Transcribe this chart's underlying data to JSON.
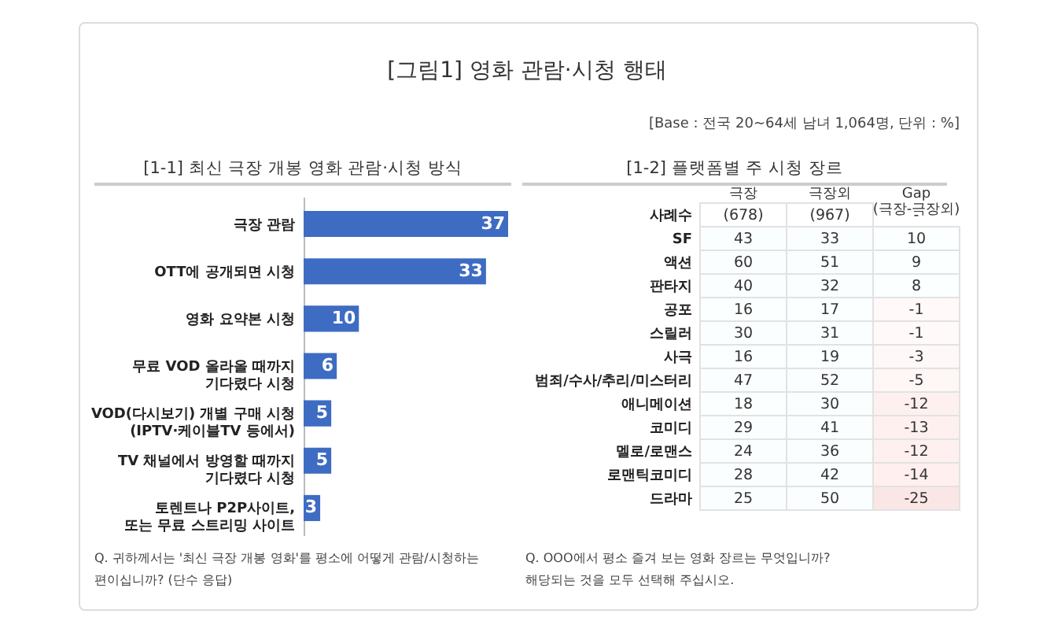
{
  "chart_data": [
    {
      "type": "bar",
      "orientation": "horizontal",
      "title": "[1-1] 최신 극장 개봉 영화 관람·시청 방식",
      "categories": [
        "극장 관람",
        "OTT에 공개되면 시청",
        "영화 요약본 시청",
        "무료 VOD 올라올 때까지\n기다렸다 시청",
        "VOD(다시보기) 개별 구매 시청\n(IPTV·케이블TV 등에서)",
        "TV 채널에서 방영할 때까지\n기다렸다 시청",
        "토렌트나 P2P사이트,\n또는 무료 스트리밍 사이트"
      ],
      "values": [
        37,
        33,
        10,
        6,
        5,
        5,
        3
      ],
      "color": "#3e6cc3",
      "data_labels": true,
      "annotations": [
        "[그림1] 영화 관람·시청 행태",
        "[Base : 전국 20~64세 남녀 1,064명, 단위 : %]",
        "Q. 귀하께서는 '최신 극장 개봉 영화'를 평소에 어떻게 관람/시청하는\n편이십니까? (단수 응답)"
      ]
    },
    {
      "type": "heatmap",
      "title": "[1-2] 플랫폼별 주 시청 장르",
      "categories": [
        "극장",
        "극장외",
        "Gap\n(극장-극장외)"
      ],
      "y_categories": [
        "사례수",
        "SF",
        "액션",
        "판타지",
        "공포",
        "스릴러",
        "사극",
        "범죄/수사/추리/미스터리",
        "애니메이션",
        "코미디",
        "멜로/로맨스",
        "로맨틱코미디",
        "드라마"
      ],
      "cells": [
        [
          678,
          967,
          null
        ],
        [
          43,
          33,
          10
        ],
        [
          60,
          51,
          9
        ],
        [
          40,
          32,
          8
        ],
        [
          16,
          17,
          -1
        ],
        [
          30,
          31,
          -1
        ],
        [
          16,
          19,
          -3
        ],
        [
          47,
          52,
          -5
        ],
        [
          18,
          30,
          -12
        ],
        [
          29,
          41,
          -13
        ],
        [
          24,
          36,
          -12
        ],
        [
          28,
          42,
          -14
        ],
        [
          25,
          50,
          -25
        ]
      ],
      "cell_labels": [
        [
          "(678)",
          "(967)",
          "-"
        ],
        [
          "43",
          "33",
          "10"
        ],
        [
          "60",
          "51",
          "9"
        ],
        [
          "40",
          "32",
          "8"
        ],
        [
          "16",
          "17",
          "-1"
        ],
        [
          "30",
          "31",
          "-1"
        ],
        [
          "16",
          "19",
          "-3"
        ],
        [
          "47",
          "52",
          "-5"
        ],
        [
          "18",
          "30",
          "-12"
        ],
        [
          "29",
          "41",
          "-13"
        ],
        [
          "24",
          "36",
          "-12"
        ],
        [
          "28",
          "42",
          "-14"
        ],
        [
          "25",
          "50",
          "-25"
        ]
      ],
      "annotations": [
        "Q. OOO에서 평소 즐겨 보는 영화 장르는 무엇입니까?\n해당되는 것을 모두 선택해 주십시오."
      ]
    }
  ]
}
